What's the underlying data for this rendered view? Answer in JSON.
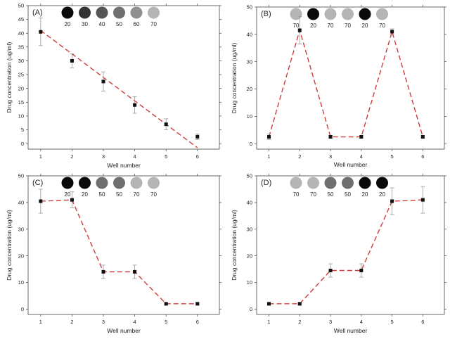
{
  "chart_data": [
    {
      "type": "scatter",
      "panel_label": "(A)",
      "xlabel": "Well number",
      "ylabel": "Drug concentration (ug/ml)",
      "x": [
        1,
        2,
        3,
        4,
        5,
        6
      ],
      "y": [
        40.5,
        30,
        22.5,
        14,
        7,
        2.5
      ],
      "errors": [
        5,
        2.5,
        3.5,
        3,
        2,
        1
      ],
      "fit_line": [
        [
          1,
          41
        ],
        [
          6,
          -1.5
        ]
      ],
      "xlim": [
        0.6,
        6.7
      ],
      "ylim": [
        -2,
        50
      ],
      "xticks": [
        "1",
        "2",
        "3",
        "4",
        "5",
        "6"
      ],
      "yticks": [
        "0",
        "5",
        "10",
        "15",
        "20",
        "25",
        "30",
        "35",
        "40",
        "45",
        "50"
      ],
      "legend_circles": [
        {
          "label": "20",
          "color": "#0a0a0a"
        },
        {
          "label": "30",
          "color": "#333333"
        },
        {
          "label": "40",
          "color": "#555555"
        },
        {
          "label": "50",
          "color": "#6f6f6f"
        },
        {
          "label": "60",
          "color": "#8f8f8f"
        },
        {
          "label": "70",
          "color": "#b5b5b5"
        }
      ]
    },
    {
      "type": "line",
      "panel_label": "(B)",
      "xlabel": "Well number",
      "ylabel": "Drug concentration (ug/ml)",
      "x": [
        1,
        2,
        3,
        4,
        5,
        6
      ],
      "y": [
        2.5,
        41.5,
        2.5,
        2.5,
        41,
        2.5
      ],
      "errors": [
        1,
        5,
        0.5,
        0.5,
        1,
        0.5
      ],
      "xlim": [
        0.6,
        6.7
      ],
      "ylim": [
        -2,
        50
      ],
      "xticks": [
        "1",
        "2",
        "3",
        "4",
        "5",
        "6"
      ],
      "yticks": [
        "0",
        "10",
        "20",
        "30",
        "40",
        "50"
      ],
      "legend_circles": [
        {
          "label": "70",
          "color": "#b5b5b5"
        },
        {
          "label": "20",
          "color": "#0a0a0a"
        },
        {
          "label": "70",
          "color": "#b5b5b5"
        },
        {
          "label": "70",
          "color": "#b5b5b5"
        },
        {
          "label": "20",
          "color": "#0a0a0a"
        },
        {
          "label": "70",
          "color": "#b5b5b5"
        }
      ]
    },
    {
      "type": "line",
      "panel_label": "(C)",
      "xlabel": "Well number",
      "ylabel": "Drug concentration (ug/ml)",
      "x": [
        1,
        2,
        3,
        4,
        5,
        6
      ],
      "y": [
        40.5,
        41,
        14,
        14,
        2,
        2
      ],
      "errors": [
        4.5,
        3,
        2.5,
        2.5,
        0.5,
        0.5
      ],
      "xlim": [
        0.6,
        6.7
      ],
      "ylim": [
        -2,
        50
      ],
      "xticks": [
        "1",
        "2",
        "3",
        "4",
        "5",
        "6"
      ],
      "yticks": [
        "0",
        "10",
        "20",
        "30",
        "40",
        "50"
      ],
      "legend_circles": [
        {
          "label": "20",
          "color": "#0a0a0a"
        },
        {
          "label": "20",
          "color": "#0a0a0a"
        },
        {
          "label": "50",
          "color": "#6f6f6f"
        },
        {
          "label": "50",
          "color": "#6f6f6f"
        },
        {
          "label": "70",
          "color": "#b5b5b5"
        },
        {
          "label": "70",
          "color": "#b5b5b5"
        }
      ]
    },
    {
      "type": "line",
      "panel_label": "(D)",
      "xlabel": "Well number",
      "ylabel": "Drug concentration (ug/ml)",
      "x": [
        1,
        2,
        3,
        4,
        5,
        6
      ],
      "y": [
        2,
        2,
        14.5,
        14.5,
        40.5,
        41
      ],
      "errors": [
        0.5,
        0.5,
        2.5,
        2.5,
        5,
        5
      ],
      "xlim": [
        0.6,
        6.7
      ],
      "ylim": [
        -2,
        50
      ],
      "xticks": [
        "1",
        "2",
        "3",
        "4",
        "5",
        "6"
      ],
      "yticks": [
        "0",
        "10",
        "20",
        "30",
        "40",
        "50"
      ],
      "legend_circles": [
        {
          "label": "70",
          "color": "#b5b5b5"
        },
        {
          "label": "70",
          "color": "#b5b5b5"
        },
        {
          "label": "50",
          "color": "#6f6f6f"
        },
        {
          "label": "50",
          "color": "#6f6f6f"
        },
        {
          "label": "20",
          "color": "#0a0a0a"
        },
        {
          "label": "20",
          "color": "#0a0a0a"
        }
      ]
    }
  ],
  "colors": {
    "line": "#d03b3b",
    "marker": "#111111",
    "error_bar": "#999999",
    "axis": "#444444"
  }
}
